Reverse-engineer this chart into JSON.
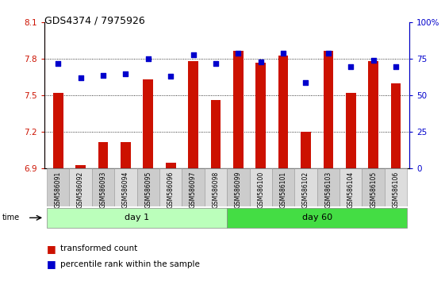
{
  "title": "GDS4374 / 7975926",
  "samples": [
    "GSM586091",
    "GSM586092",
    "GSM586093",
    "GSM586094",
    "GSM586095",
    "GSM586096",
    "GSM586097",
    "GSM586098",
    "GSM586099",
    "GSM586100",
    "GSM586101",
    "GSM586102",
    "GSM586103",
    "GSM586104",
    "GSM586105",
    "GSM586106"
  ],
  "bar_values": [
    7.52,
    6.93,
    7.12,
    7.12,
    7.63,
    6.95,
    7.78,
    7.46,
    7.87,
    7.77,
    7.83,
    7.2,
    7.87,
    7.52,
    7.78,
    7.6
  ],
  "dot_values": [
    72,
    62,
    64,
    65,
    75,
    63,
    78,
    72,
    79,
    73,
    79,
    59,
    79,
    70,
    74,
    70
  ],
  "ylim_left": [
    6.9,
    8.1
  ],
  "ylim_right": [
    0,
    100
  ],
  "yticks_left": [
    6.9,
    7.2,
    7.5,
    7.8,
    8.1
  ],
  "yticks_right": [
    0,
    25,
    50,
    75,
    100
  ],
  "ytick_labels_left": [
    "6.9",
    "7.2",
    "7.5",
    "7.8",
    "8.1"
  ],
  "ytick_labels_right": [
    "0",
    "25",
    "50",
    "75",
    "100%"
  ],
  "bar_color": "#cc1100",
  "dot_color": "#0000cc",
  "background_color": "#ffffff",
  "grid_color": "#000000",
  "day1_label": "day 1",
  "day60_label": "day 60",
  "day1_color": "#bbffbb",
  "day60_color": "#44dd44",
  "time_label": "time",
  "legend_bar_label": "transformed count",
  "legend_dot_label": "percentile rank within the sample"
}
